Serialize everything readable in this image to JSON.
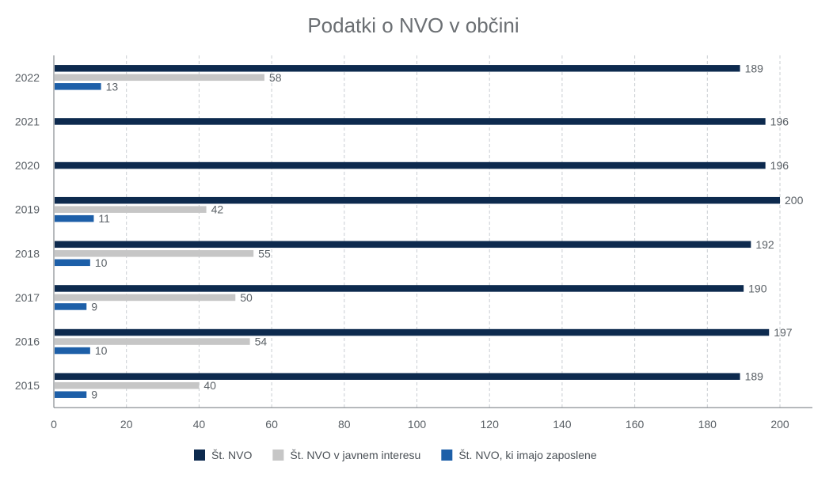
{
  "chart_data": {
    "type": "bar",
    "orientation": "horizontal",
    "title": "Podatki o NVO v občini",
    "categories": [
      "2022",
      "2021",
      "2020",
      "2019",
      "2018",
      "2017",
      "2016",
      "2015"
    ],
    "series": [
      {
        "name": "Št. NVO",
        "color": "#0d2a4e",
        "values": [
          189,
          196,
          196,
          200,
          192,
          190,
          197,
          189
        ]
      },
      {
        "name": "Št. NVO v javnem interesu",
        "color": "#c6c6c6",
        "values": [
          58,
          null,
          null,
          42,
          55,
          50,
          54,
          40
        ]
      },
      {
        "name": "Št. NVO, ki imajo zaposlene",
        "color": "#1d5fa8",
        "values": [
          13,
          null,
          null,
          11,
          10,
          9,
          10,
          9
        ]
      }
    ],
    "xlim": [
      0,
      210
    ],
    "xticks": [
      0,
      20,
      40,
      60,
      80,
      100,
      120,
      140,
      160,
      180,
      200
    ],
    "xlabel": "",
    "ylabel": "",
    "grid": "vertical dashed",
    "legend": "bottom-center",
    "data_labels": true
  }
}
